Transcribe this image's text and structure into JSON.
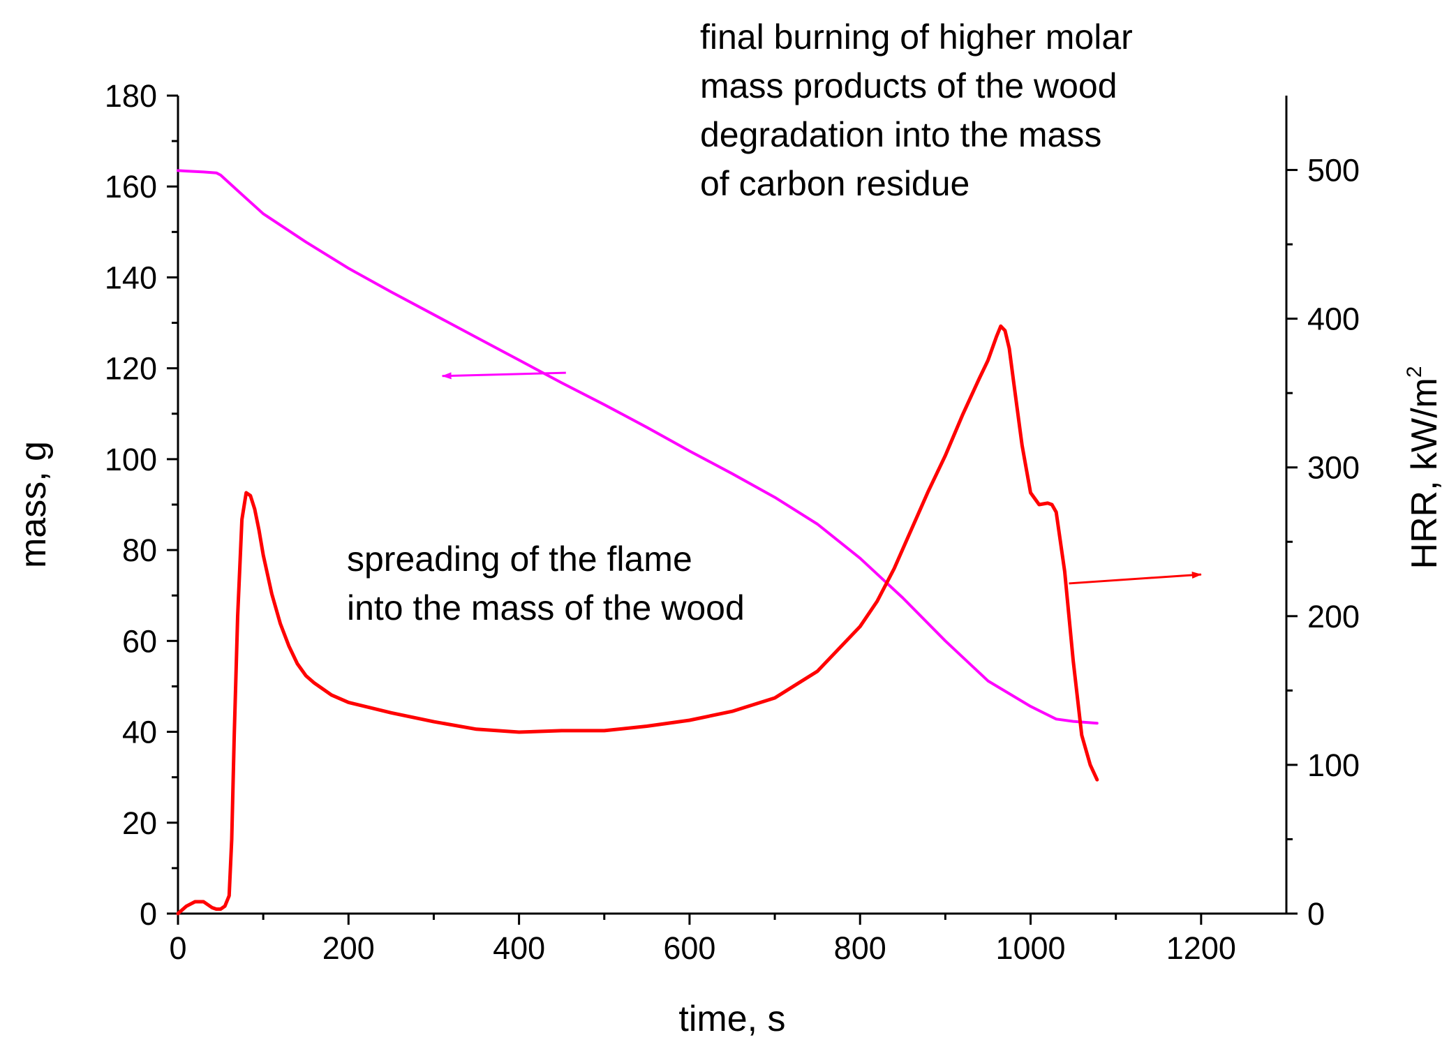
{
  "chart_data": {
    "type": "line",
    "xlabel": "time, s",
    "ylabel_left": "mass, g",
    "ylabel_right_main": "HRR, kW/m",
    "ylabel_right_sup": "2",
    "xlim": [
      0,
      1300
    ],
    "ylim_left": [
      0,
      180
    ],
    "ylim_right": [
      0,
      550
    ],
    "x_ticks": [
      "0",
      "200",
      "400",
      "600",
      "800",
      "1000",
      "1200"
    ],
    "y_left_ticks": [
      "0",
      "20",
      "40",
      "60",
      "80",
      "100",
      "120",
      "140",
      "160",
      "180"
    ],
    "y_right_ticks": [
      "0",
      "100",
      "200",
      "300",
      "400",
      "500"
    ],
    "grid": false,
    "legend": "none",
    "series": [
      {
        "axis": "left",
        "color": "#ff00ff",
        "x": [
          0,
          10,
          20,
          30,
          45,
          50,
          60,
          70,
          80,
          100,
          150,
          200,
          250,
          300,
          350,
          400,
          450,
          500,
          550,
          600,
          650,
          700,
          750,
          800,
          850,
          900,
          950,
          1000,
          1030,
          1050,
          1070,
          1078
        ],
        "y": [
          163.5,
          163.4,
          163.3,
          163.2,
          163,
          162.5,
          160.8,
          159.1,
          157.4,
          154,
          147.8,
          142,
          136.8,
          131.8,
          126.8,
          121.8,
          116.8,
          112,
          107,
          101.8,
          96.8,
          91.6,
          85.7,
          78.2,
          69.5,
          60,
          51.2,
          45.6,
          42.8,
          42.3,
          42,
          41.9
        ]
      },
      {
        "axis": "right",
        "color": "#ff0000",
        "x": [
          0,
          10,
          20,
          30,
          40,
          45,
          50,
          55,
          60,
          63,
          66,
          70,
          75,
          80,
          85,
          90,
          95,
          100,
          110,
          120,
          130,
          140,
          150,
          160,
          180,
          200,
          250,
          300,
          350,
          400,
          450,
          500,
          550,
          600,
          650,
          700,
          750,
          800,
          820,
          840,
          860,
          880,
          900,
          920,
          940,
          950,
          960,
          965,
          970,
          975,
          980,
          990,
          1000,
          1010,
          1020,
          1025,
          1030,
          1040,
          1050,
          1060,
          1070,
          1078
        ],
        "y": [
          0,
          5,
          8,
          8,
          4,
          3,
          3,
          5,
          12,
          50,
          120,
          200,
          265,
          283,
          281,
          272,
          258,
          241,
          215,
          195,
          180,
          168,
          160,
          155,
          147,
          142,
          135,
          129,
          124,
          122,
          123,
          123,
          126,
          130,
          136,
          145,
          163,
          193,
          210,
          232,
          258,
          284,
          308,
          335,
          360,
          372,
          388,
          395,
          392,
          380,
          358,
          315,
          283,
          275,
          276,
          275,
          270,
          230,
          170,
          120,
          100,
          90
        ]
      }
    ],
    "annotations": [
      {
        "lines": [
          "final  burning of higher molar",
          "mass products of the wood",
          "degradation into the mass",
          "of carbon residue"
        ]
      },
      {
        "lines": [
          "spreading of the flame",
          "into the mass of the wood"
        ]
      }
    ],
    "arrows": [
      {
        "color": "#ff00ff",
        "from_x": 455,
        "from_y_left": 119,
        "to_x": 310,
        "to_y_left": 118.3
      },
      {
        "color": "#ff0000",
        "from_x": 1045,
        "from_y_right": 222,
        "to_x": 1200,
        "to_y_right": 228
      }
    ]
  }
}
